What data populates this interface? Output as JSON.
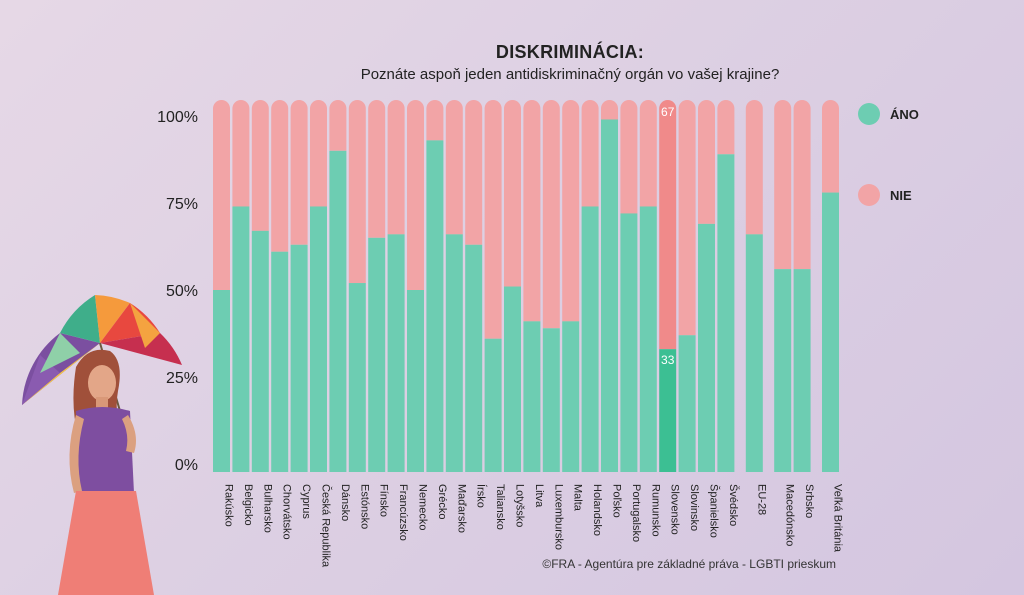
{
  "chart_data": {
    "type": "bar",
    "stacked": true,
    "title": "DISKRIMINÁCIA:",
    "subtitle": "Poznáte aspoň jeden antidiskriminačný orgán vo vašej krajine?",
    "ytick_labels": [
      "0%",
      "25%",
      "50%",
      "75%",
      "100%"
    ],
    "ylim": [
      0,
      100
    ],
    "categories": [
      "Rakúsko",
      "Belgicko",
      "Bulharsko",
      "Chorvátsko",
      "Cyprus",
      "Česká Republika",
      "Dánsko",
      "Estónsko",
      "Fínsko",
      "Francúzsko",
      "Nemecko",
      "Grécko",
      "Maďarsko",
      "Írsko",
      "Taliansko",
      "Lotyšsko",
      "Litva",
      "Luxembursko",
      "Malta",
      "Holandsko",
      "Poľsko",
      "Portugalsko",
      "Rumunsko",
      "Slovensko",
      "Slovinsko",
      "Španielsko",
      "Švédsko",
      "EU-28",
      "Macedónsko",
      "Srbsko",
      "Veľká Británia"
    ],
    "series": [
      {
        "name": "ÁNO",
        "color": "#6dcdb2",
        "values": [
          50,
          74,
          67,
          61,
          63,
          74,
          90,
          52,
          65,
          66,
          50,
          93,
          66,
          63,
          36,
          51,
          41,
          39,
          41,
          74,
          99,
          72,
          74,
          33,
          37,
          69,
          89,
          66,
          56,
          56,
          78
        ]
      },
      {
        "name": "NIE",
        "color": "#f2a4a6",
        "values": [
          50,
          26,
          33,
          39,
          37,
          26,
          10,
          48,
          35,
          34,
          50,
          7,
          34,
          37,
          64,
          49,
          59,
          61,
          59,
          26,
          1,
          28,
          26,
          67,
          63,
          31,
          11,
          34,
          44,
          44,
          22
        ]
      }
    ],
    "highlight": {
      "category": "Slovensko",
      "ano_color": "#3cbf93",
      "nie_color": "#f08a8a",
      "ano_label": "33",
      "nie_label": "67"
    },
    "legend": {
      "position": "right",
      "items": [
        "ÁNO",
        "NIE"
      ]
    },
    "grid": false
  },
  "footer": {
    "credit": "©FRA - Agentúra pre základné práva - LGBTI prieskum"
  }
}
